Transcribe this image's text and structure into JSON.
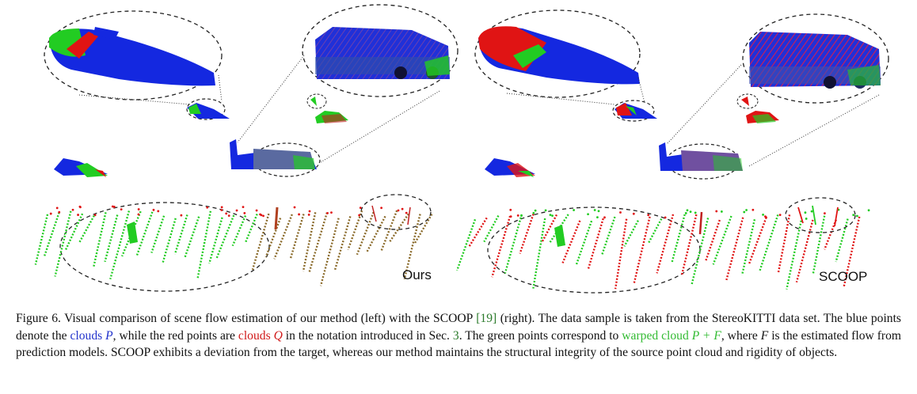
{
  "figure": {
    "panels": [
      {
        "label": "Ours"
      },
      {
        "label": "SCOOP"
      }
    ],
    "colors": {
      "source": "#1428e0",
      "target": "#e01414",
      "warped": "#22cc22",
      "mixed": "#8a6a2a"
    }
  },
  "caption": {
    "figure_number": "Figure 6.",
    "part1": "Visual comparison of scene flow estimation of our method (left) with the SCOOP",
    "ref1": "[19]",
    "part2": "(right). The data sample is taken from the StereoKITTI data set. The blue points denote the",
    "blue_term": "clouds",
    "blue_sym": "P",
    "part3": ", while the red points are",
    "red_term": "clouds",
    "red_sym": "Q",
    "part4": "in the notation introduced in Sec.",
    "ref2": "3",
    "part5": ". The green points correspond to",
    "green_term": "warped cloud",
    "green_sym": "P + F",
    "part6": ", where",
    "sym_f": "F",
    "part7": "is the estimated flow from prediction models. SCOOP exhibits a deviation from the target, whereas our method maintains the structural integrity of the source point cloud and rigidity of objects."
  }
}
